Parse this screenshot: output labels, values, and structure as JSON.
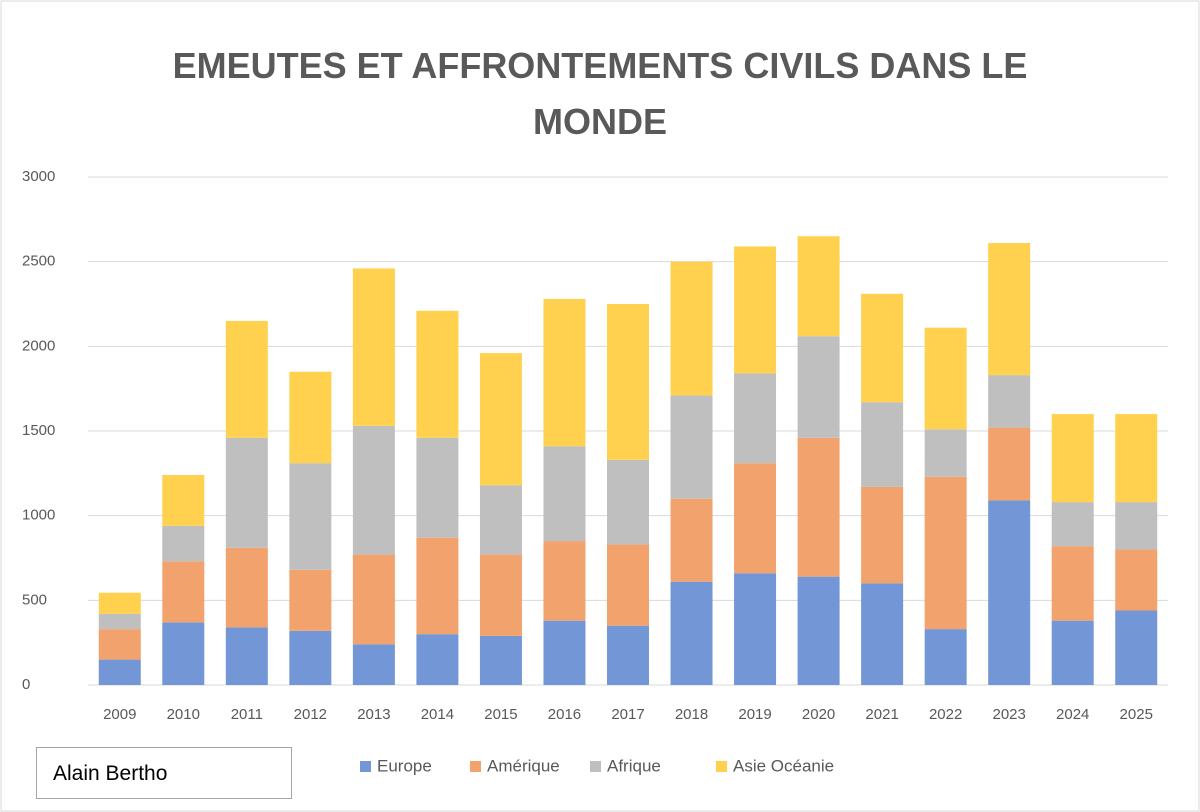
{
  "chart_data": {
    "type": "stacked_bar",
    "title": "EMEUTES ET AFFRONTEMENTS CIVILS DANS LE MONDE",
    "annotation": "Alain Bertho",
    "categories": [
      "2009",
      "2010",
      "2011",
      "2012",
      "2013",
      "2014",
      "2015",
      "2016",
      "2017",
      "2018",
      "2019",
      "2020",
      "2021",
      "2022",
      "2023",
      "2024",
      "2025"
    ],
    "series": [
      {
        "name": "Europe",
        "color": "#7296d6",
        "values": [
          150,
          370,
          340,
          320,
          240,
          300,
          290,
          380,
          350,
          610,
          660,
          640,
          600,
          330,
          1090,
          380,
          440
        ]
      },
      {
        "name": "Amérique",
        "color": "#f2a26c",
        "values": [
          180,
          360,
          470,
          360,
          530,
          570,
          480,
          470,
          480,
          490,
          650,
          820,
          570,
          900,
          430,
          440,
          360
        ]
      },
      {
        "name": "Afrique",
        "color": "#bfbfbf",
        "values": [
          90,
          210,
          650,
          630,
          760,
          590,
          410,
          560,
          500,
          610,
          530,
          600,
          500,
          280,
          310,
          260,
          280
        ]
      },
      {
        "name": "Asie Océanie",
        "color": "#ffd14f",
        "values": [
          125,
          300,
          690,
          540,
          930,
          750,
          780,
          870,
          920,
          790,
          750,
          590,
          640,
          600,
          780,
          520,
          520
        ]
      }
    ],
    "ylim": [
      0,
      3000
    ],
    "yticks": [
      0,
      500,
      1000,
      1500,
      2000,
      2500,
      3000
    ],
    "grid": true
  }
}
